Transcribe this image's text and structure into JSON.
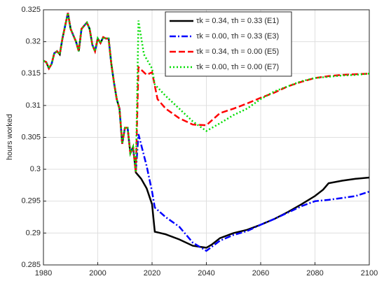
{
  "chart_data": {
    "type": "line",
    "y_label": "hours worked",
    "xlim": [
      1980,
      2100
    ],
    "xticks": [
      1980,
      2000,
      2020,
      2040,
      2060,
      2080,
      2100
    ],
    "ylim": [
      0.285,
      0.325
    ],
    "yticks": [
      0.285,
      0.29,
      0.295,
      0.3,
      0.305,
      0.31,
      0.315,
      0.32,
      0.325
    ],
    "grid": true,
    "legend": "upper right",
    "series": [
      {
        "name": "τk = 0.34, τh = 0.33 (E1)",
        "color": "#000000",
        "dash": "solid",
        "x": [
          1980,
          1981,
          1982,
          1983,
          1984,
          1985,
          1986,
          1987,
          1988,
          1989,
          1990,
          1991,
          1992,
          1993,
          1994,
          1995,
          1996,
          1997,
          1998,
          1999,
          2000,
          2001,
          2002,
          2003,
          2004,
          2005,
          2006,
          2007,
          2008,
          2009,
          2010,
          2011,
          2012,
          2013,
          2014,
          2016,
          2018,
          2020,
          2021,
          2025,
          2030,
          2035,
          2040,
          2042,
          2045,
          2050,
          2055,
          2060,
          2065,
          2070,
          2075,
          2080,
          2083,
          2085,
          2090,
          2095,
          2100
        ],
        "values": [
          0.317,
          0.3168,
          0.3158,
          0.3165,
          0.3182,
          0.3185,
          0.318,
          0.3205,
          0.3225,
          0.3245,
          0.322,
          0.321,
          0.32,
          0.3185,
          0.322,
          0.3225,
          0.323,
          0.322,
          0.3195,
          0.3185,
          0.3205,
          0.3198,
          0.3207,
          0.3205,
          0.3205,
          0.3165,
          0.3135,
          0.311,
          0.3095,
          0.304,
          0.3065,
          0.3065,
          0.3025,
          0.3035,
          0.2995,
          0.2985,
          0.297,
          0.2945,
          0.2902,
          0.2898,
          0.289,
          0.288,
          0.2877,
          0.2882,
          0.2892,
          0.29,
          0.2905,
          0.2913,
          0.2922,
          0.2933,
          0.2945,
          0.2958,
          0.2968,
          0.2978,
          0.2982,
          0.2985,
          0.2987
        ]
      },
      {
        "name": "τk = 0.00, τh = 0.33 (E3)",
        "color": "#0000ff",
        "dash": "dashdot",
        "x": [
          1980,
          1981,
          1982,
          1983,
          1984,
          1985,
          1986,
          1987,
          1988,
          1989,
          1990,
          1991,
          1992,
          1993,
          1994,
          1995,
          1996,
          1997,
          1998,
          1999,
          2000,
          2001,
          2002,
          2003,
          2004,
          2005,
          2006,
          2007,
          2008,
          2009,
          2010,
          2011,
          2012,
          2013,
          2014,
          2015,
          2018,
          2020,
          2021,
          2025,
          2030,
          2035,
          2040,
          2045,
          2050,
          2055,
          2060,
          2065,
          2070,
          2075,
          2080,
          2085,
          2090,
          2095,
          2100
        ],
        "values": [
          0.317,
          0.3168,
          0.3158,
          0.3165,
          0.3182,
          0.3185,
          0.318,
          0.3205,
          0.3225,
          0.3245,
          0.322,
          0.321,
          0.32,
          0.3185,
          0.322,
          0.3225,
          0.323,
          0.322,
          0.3195,
          0.3185,
          0.3205,
          0.3198,
          0.3207,
          0.3205,
          0.3205,
          0.3165,
          0.3135,
          0.311,
          0.3095,
          0.304,
          0.3065,
          0.3065,
          0.3025,
          0.3035,
          0.2995,
          0.3055,
          0.3005,
          0.2965,
          0.294,
          0.2925,
          0.291,
          0.2885,
          0.2872,
          0.2888,
          0.2897,
          0.2903,
          0.2913,
          0.2922,
          0.2932,
          0.2942,
          0.295,
          0.2952,
          0.2955,
          0.2958,
          0.2965
        ]
      },
      {
        "name": "τk = 0.34, τh = 0.00 (E5)",
        "color": "#ff0000",
        "dash": "dashed",
        "x": [
          1980,
          1981,
          1982,
          1983,
          1984,
          1985,
          1986,
          1987,
          1988,
          1989,
          1990,
          1991,
          1992,
          1993,
          1994,
          1995,
          1996,
          1997,
          1998,
          1999,
          2000,
          2001,
          2002,
          2003,
          2004,
          2005,
          2006,
          2007,
          2008,
          2009,
          2010,
          2011,
          2012,
          2013,
          2014,
          2015,
          2018,
          2020,
          2022,
          2025,
          2030,
          2035,
          2040,
          2045,
          2050,
          2055,
          2060,
          2065,
          2070,
          2075,
          2080,
          2085,
          2090,
          2095,
          2100
        ],
        "values": [
          0.317,
          0.3168,
          0.3158,
          0.3165,
          0.3182,
          0.3185,
          0.318,
          0.3205,
          0.3225,
          0.3245,
          0.322,
          0.321,
          0.32,
          0.3185,
          0.322,
          0.3225,
          0.323,
          0.322,
          0.3195,
          0.3185,
          0.3205,
          0.3198,
          0.3207,
          0.3205,
          0.3205,
          0.3165,
          0.3135,
          0.311,
          0.3095,
          0.304,
          0.3065,
          0.3065,
          0.3025,
          0.3035,
          0.2995,
          0.316,
          0.3148,
          0.3152,
          0.311,
          0.3095,
          0.308,
          0.307,
          0.3069,
          0.3088,
          0.3095,
          0.3103,
          0.3112,
          0.312,
          0.313,
          0.3137,
          0.3143,
          0.3146,
          0.3148,
          0.3149,
          0.315
        ]
      },
      {
        "name": "τk = 0.00, τh = 0.00 (E7)",
        "color": "#00dd00",
        "dash": "dotted",
        "x": [
          1980,
          1981,
          1982,
          1983,
          1984,
          1985,
          1986,
          1987,
          1988,
          1989,
          1990,
          1991,
          1992,
          1993,
          1994,
          1995,
          1996,
          1997,
          1998,
          1999,
          2000,
          2001,
          2002,
          2003,
          2004,
          2005,
          2006,
          2007,
          2008,
          2009,
          2010,
          2011,
          2012,
          2013,
          2014,
          2015,
          2017,
          2020,
          2021,
          2025,
          2030,
          2035,
          2040,
          2045,
          2050,
          2055,
          2060,
          2065,
          2070,
          2075,
          2080,
          2085,
          2090,
          2095,
          2100
        ],
        "values": [
          0.317,
          0.3168,
          0.3158,
          0.3165,
          0.3182,
          0.3185,
          0.318,
          0.3205,
          0.3225,
          0.3245,
          0.322,
          0.321,
          0.32,
          0.3185,
          0.322,
          0.3225,
          0.323,
          0.322,
          0.3195,
          0.3185,
          0.3205,
          0.3198,
          0.3207,
          0.3205,
          0.3205,
          0.3165,
          0.3135,
          0.311,
          0.3095,
          0.304,
          0.3065,
          0.3065,
          0.3025,
          0.3035,
          0.2995,
          0.3233,
          0.318,
          0.3158,
          0.3133,
          0.3115,
          0.3095,
          0.3075,
          0.306,
          0.3072,
          0.3085,
          0.3095,
          0.311,
          0.3122,
          0.313,
          0.3138,
          0.3143,
          0.3145,
          0.3147,
          0.3148,
          0.315
        ]
      }
    ]
  }
}
